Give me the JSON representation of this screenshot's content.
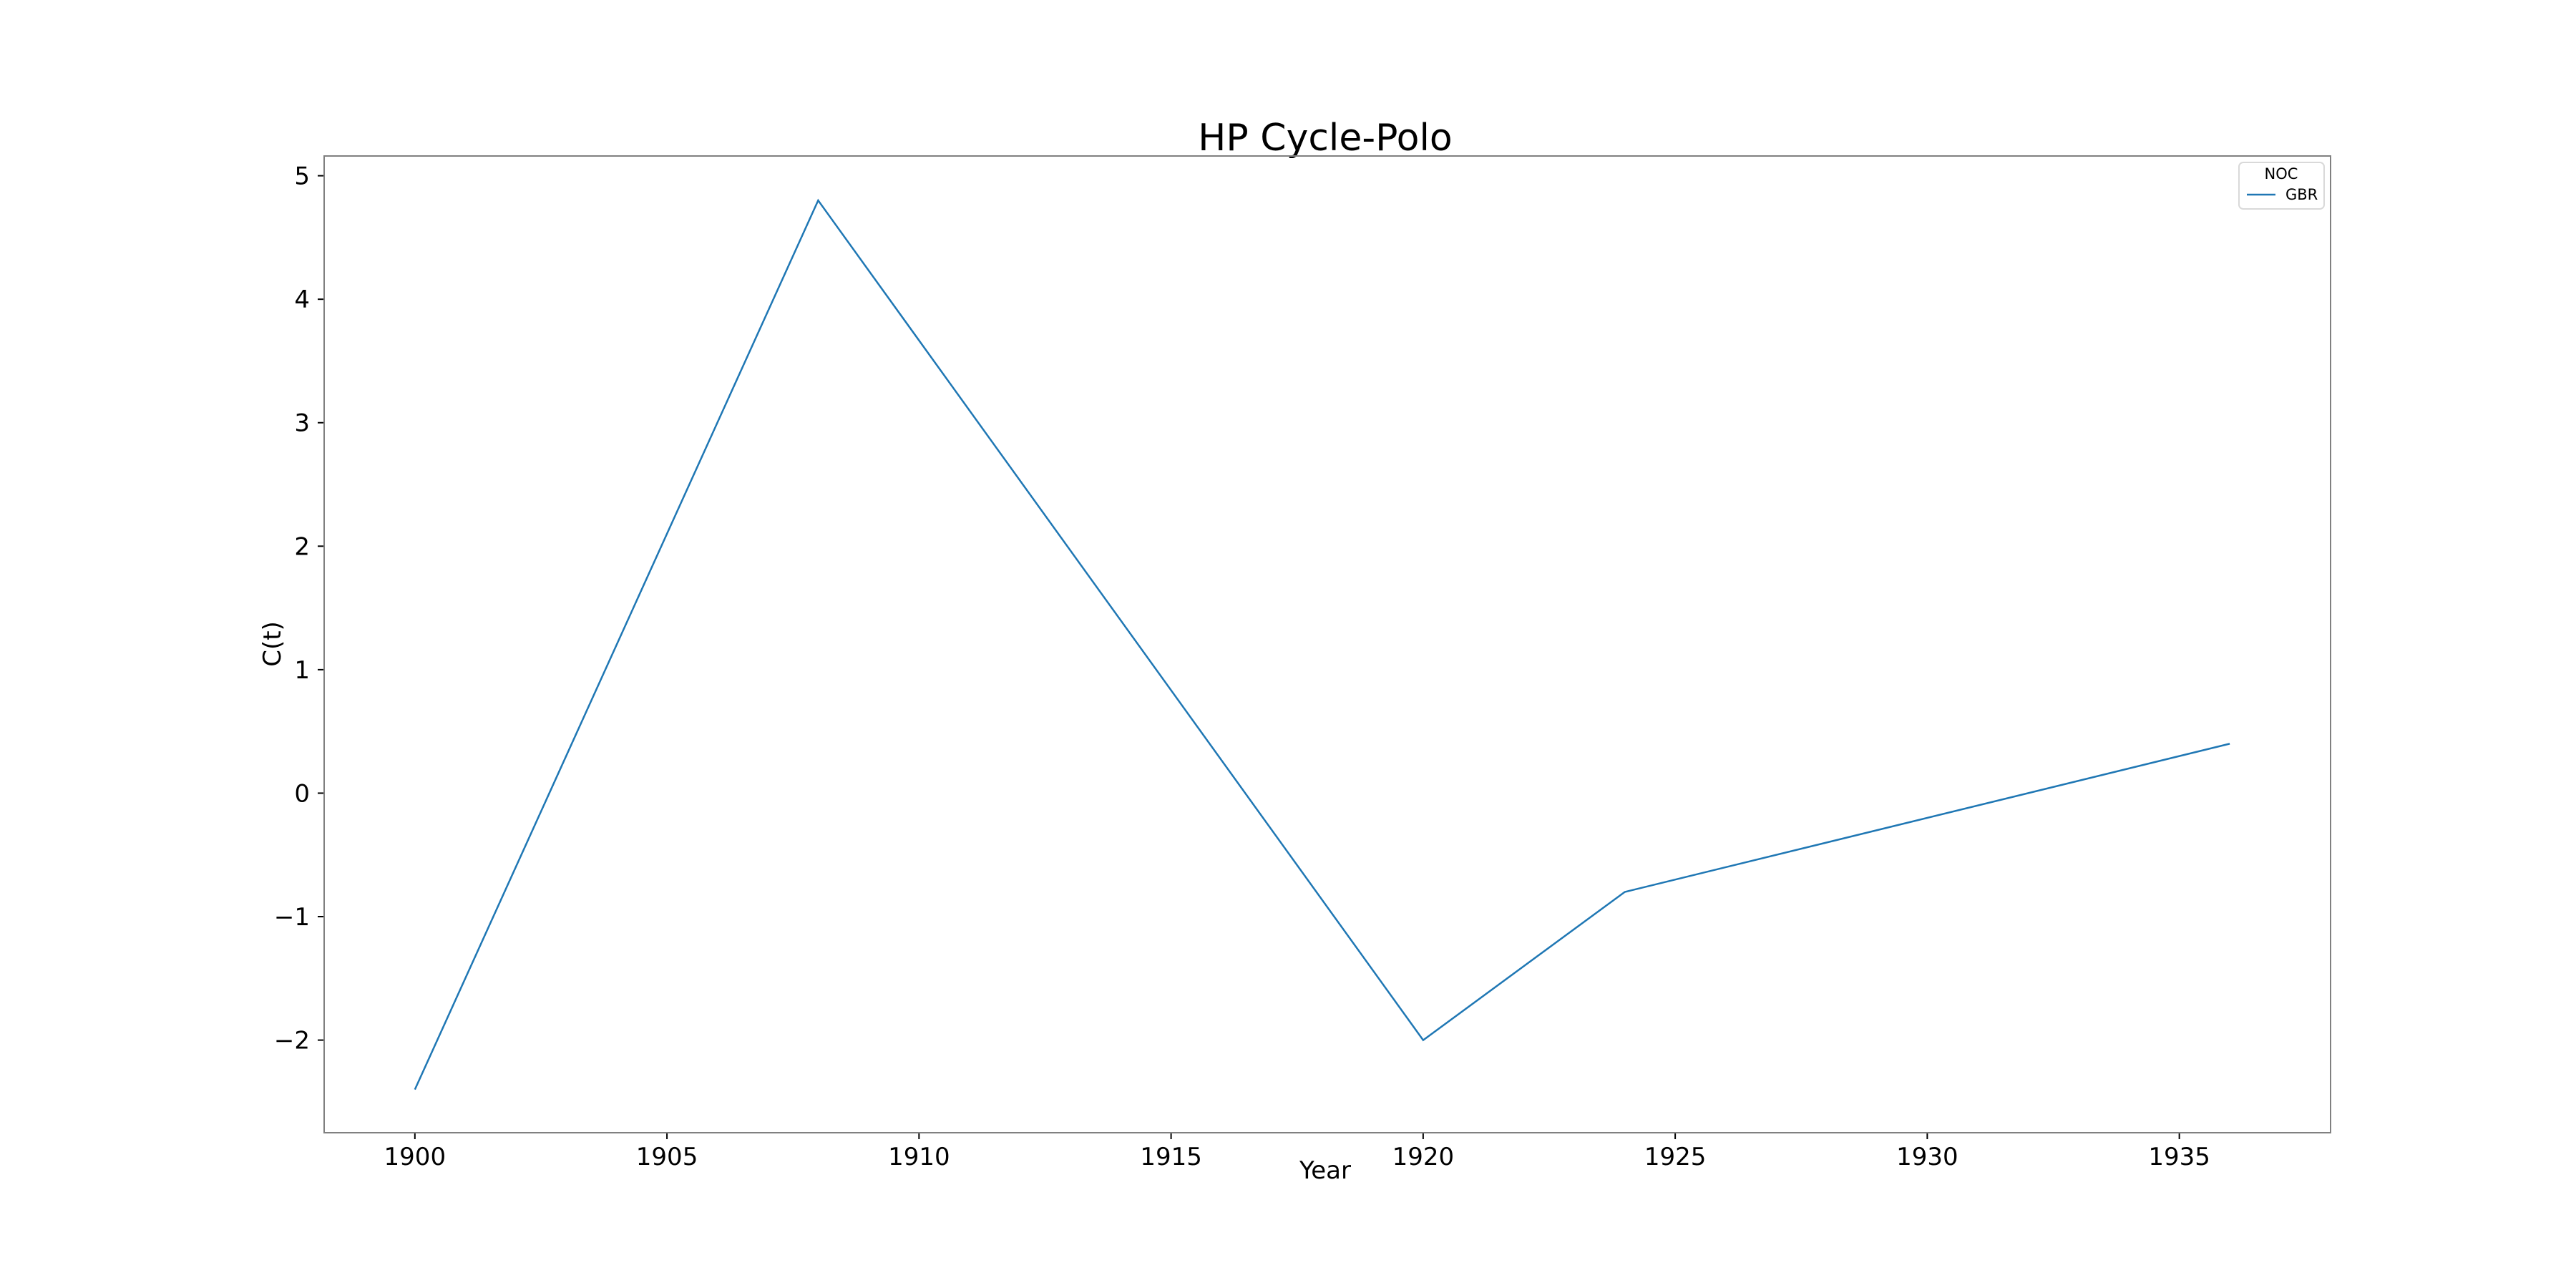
{
  "chart_data": {
    "type": "line",
    "title": "HP Cycle-Polo",
    "xlabel": "Year",
    "ylabel": "C(t)",
    "xlim": [
      1898.2,
      1938.0
    ],
    "ylim": [
      -2.75,
      5.16
    ],
    "xticks": [
      1900,
      1905,
      1910,
      1915,
      1920,
      1925,
      1930,
      1935
    ],
    "yticks": [
      -2,
      -1,
      0,
      1,
      2,
      3,
      4,
      5
    ],
    "xtick_labels": [
      "1900",
      "1905",
      "1910",
      "1915",
      "1920",
      "1925",
      "1930",
      "1935"
    ],
    "ytick_labels": [
      "−2",
      "−1",
      "0",
      "1",
      "2",
      "3",
      "4",
      "5"
    ],
    "grid": false,
    "legend": {
      "title": "NOC",
      "placement": "top-right"
    },
    "series": [
      {
        "name": "GBR",
        "color": "#1f77b4",
        "x": [
          1900,
          1908,
          1920,
          1924,
          1936
        ],
        "y": [
          -2.4,
          4.8,
          -2.0,
          -0.8,
          0.4
        ]
      }
    ]
  },
  "colors": {
    "axes_frame": "#808080",
    "background": "#ffffff",
    "text": "#000000"
  }
}
